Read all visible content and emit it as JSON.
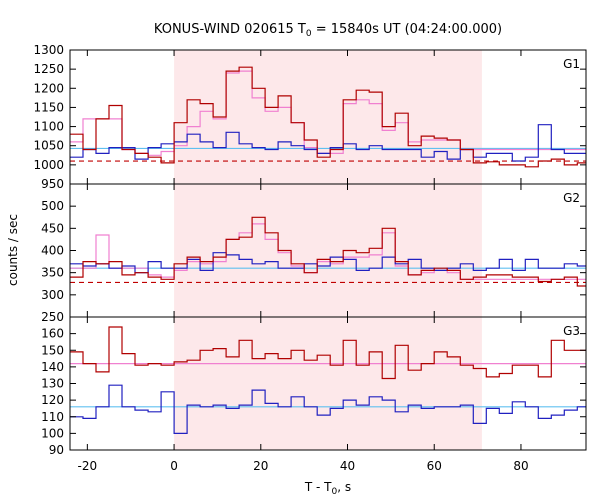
{
  "chart_data": {
    "type": "line",
    "title": {
      "main": "KONUS-WIND 020615 T",
      "sub": "0",
      "rest": " = 15840s UT (04:24:00.000)"
    },
    "xlabel": {
      "main": "T - T",
      "sub": "0",
      "rest": ", s"
    },
    "ylabel": "counts / sec",
    "xlim": [
      -24,
      95
    ],
    "xticks": [
      -20,
      0,
      20,
      40,
      60,
      80
    ],
    "shaded_interval": {
      "x0": 0,
      "x1": 71,
      "color": "#fde8ea"
    },
    "colors": {
      "soft": "#b00000",
      "hard": "#2020c0",
      "bg_soft": "#c00000",
      "bg_hard": "#60c0f0",
      "model": "#f080d0",
      "frame": "#000000"
    },
    "step_edges": [
      -24,
      -21,
      -18,
      -15,
      -12,
      -9,
      -6,
      -3,
      0,
      3,
      6,
      9,
      12,
      15,
      18,
      21,
      24,
      27,
      30,
      33,
      36,
      39,
      42,
      45,
      48,
      51,
      54,
      57,
      60,
      63,
      66,
      69,
      72,
      75,
      78,
      81,
      84,
      87,
      90,
      93,
      95
    ],
    "panels": [
      {
        "label": "G1",
        "ylim": [
          950,
          1300
        ],
        "yticks": [
          950,
          1000,
          1050,
          1100,
          1150,
          1200,
          1250,
          1300
        ],
        "series": [
          {
            "role": "soft",
            "values": [
              1080,
              1040,
              1120,
              1155,
              1040,
              1030,
              1020,
              1005,
              1110,
              1170,
              1160,
              1125,
              1245,
              1255,
              1200,
              1150,
              1180,
              1110,
              1065,
              1020,
              1040,
              1170,
              1195,
              1190,
              1100,
              1135,
              1050,
              1075,
              1070,
              1065,
              1040,
              1005,
              1008,
              1000,
              1000,
              995,
              1010,
              1015,
              1000,
              1005
            ]
          },
          {
            "role": "hard",
            "values": [
              1020,
              1040,
              1030,
              1045,
              1045,
              1015,
              1045,
              1055,
              1060,
              1080,
              1060,
              1045,
              1085,
              1055,
              1045,
              1040,
              1060,
              1050,
              1040,
              1030,
              1045,
              1055,
              1040,
              1050,
              1040,
              1040,
              1040,
              1020,
              1035,
              1015,
              1040,
              1020,
              1030,
              1030,
              1010,
              1020,
              1105,
              1040,
              1030,
              1030
            ]
          },
          {
            "role": "model",
            "values": [
              1060,
              1120,
              1120,
              1120,
              1040,
              1030,
              1025,
              1035,
              1050,
              1100,
              1140,
              1120,
              1240,
              1245,
              1175,
              1140,
              1150,
              1110,
              1045,
              1030,
              1030,
              1160,
              1170,
              1160,
              1090,
              1110,
              1060,
              1065,
              1065,
              1065,
              1040,
              1040,
              1040,
              1040,
              1040,
              1040,
              1040,
              1040,
              1040,
              1040
            ]
          },
          {
            "role": "bg_soft",
            "level": 1010,
            "dashed": true
          },
          {
            "role": "bg_hard",
            "level": 1043,
            "dashed": false
          }
        ]
      },
      {
        "label": "G2",
        "ylim": [
          250,
          550
        ],
        "yticks": [
          250,
          300,
          350,
          400,
          450,
          500
        ],
        "series": [
          {
            "role": "soft",
            "values": [
              340,
              375,
              370,
              375,
              345,
              350,
              340,
              335,
              370,
              385,
              375,
              385,
              425,
              430,
              475,
              440,
              400,
              370,
              350,
              380,
              375,
              400,
              395,
              405,
              450,
              375,
              345,
              355,
              360,
              355,
              335,
              340,
              345,
              345,
              340,
              340,
              330,
              335,
              340,
              320
            ]
          },
          {
            "role": "hard",
            "values": [
              370,
              365,
              370,
              360,
              365,
              350,
              375,
              360,
              360,
              380,
              355,
              395,
              390,
              380,
              370,
              375,
              360,
              360,
              370,
              365,
              385,
              380,
              355,
              360,
              385,
              370,
              380,
              360,
              355,
              360,
              370,
              355,
              360,
              380,
              355,
              380,
              360,
              360,
              370,
              365
            ]
          },
          {
            "role": "model",
            "values": [
              360,
              360,
              435,
              360,
              360,
              360,
              345,
              340,
              355,
              375,
              370,
              375,
              425,
              440,
              460,
              425,
              395,
              365,
              350,
              375,
              370,
              385,
              385,
              390,
              440,
              365,
              345,
              350,
              355,
              350,
              335,
              335,
              335,
              335,
              335,
              335,
              335,
              335,
              335,
              335
            ]
          },
          {
            "role": "bg_soft",
            "level": 328,
            "dashed": true
          },
          {
            "role": "bg_hard",
            "level": 360,
            "dashed": false
          }
        ]
      },
      {
        "label": "G3",
        "ylim": [
          90,
          170
        ],
        "yticks": [
          90,
          100,
          110,
          120,
          130,
          140,
          150,
          160
        ],
        "series": [
          {
            "role": "soft",
            "values": [
              149,
              142,
              137,
              164,
              148,
              141,
              142,
              141,
              143,
              144,
              150,
              151,
              146,
              156,
              145,
              148,
              145,
              150,
              144,
              147,
              141,
              156,
              141,
              149,
              133,
              153,
              138,
              142,
              149,
              146,
              141,
              139,
              134,
              136,
              141,
              141,
              134,
              156,
              150,
              150
            ]
          },
          {
            "role": "hard",
            "values": [
              110,
              109,
              116,
              129,
              116,
              114,
              113,
              125,
              100,
              117,
              116,
              117,
              115,
              117,
              126,
              118,
              116,
              122,
              116,
              111,
              115,
              120,
              117,
              122,
              120,
              113,
              117,
              115,
              116,
              116,
              117,
              106,
              115,
              112,
              119,
              116,
              109,
              111,
              114,
              116
            ]
          },
          {
            "role": "model",
            "values": [
              142,
              142,
              142,
              142,
              142,
              142,
              142,
              142,
              142,
              142,
              142,
              142,
              142,
              142,
              142,
              142,
              142,
              142,
              142,
              142,
              142,
              142,
              142,
              142,
              142,
              142,
              142,
              142,
              142,
              142,
              142,
              142,
              142,
              142,
              142,
              142,
              142,
              142,
              142,
              142
            ]
          },
          {
            "role": "bg_hard",
            "level": 116,
            "dashed": false
          }
        ]
      }
    ]
  }
}
